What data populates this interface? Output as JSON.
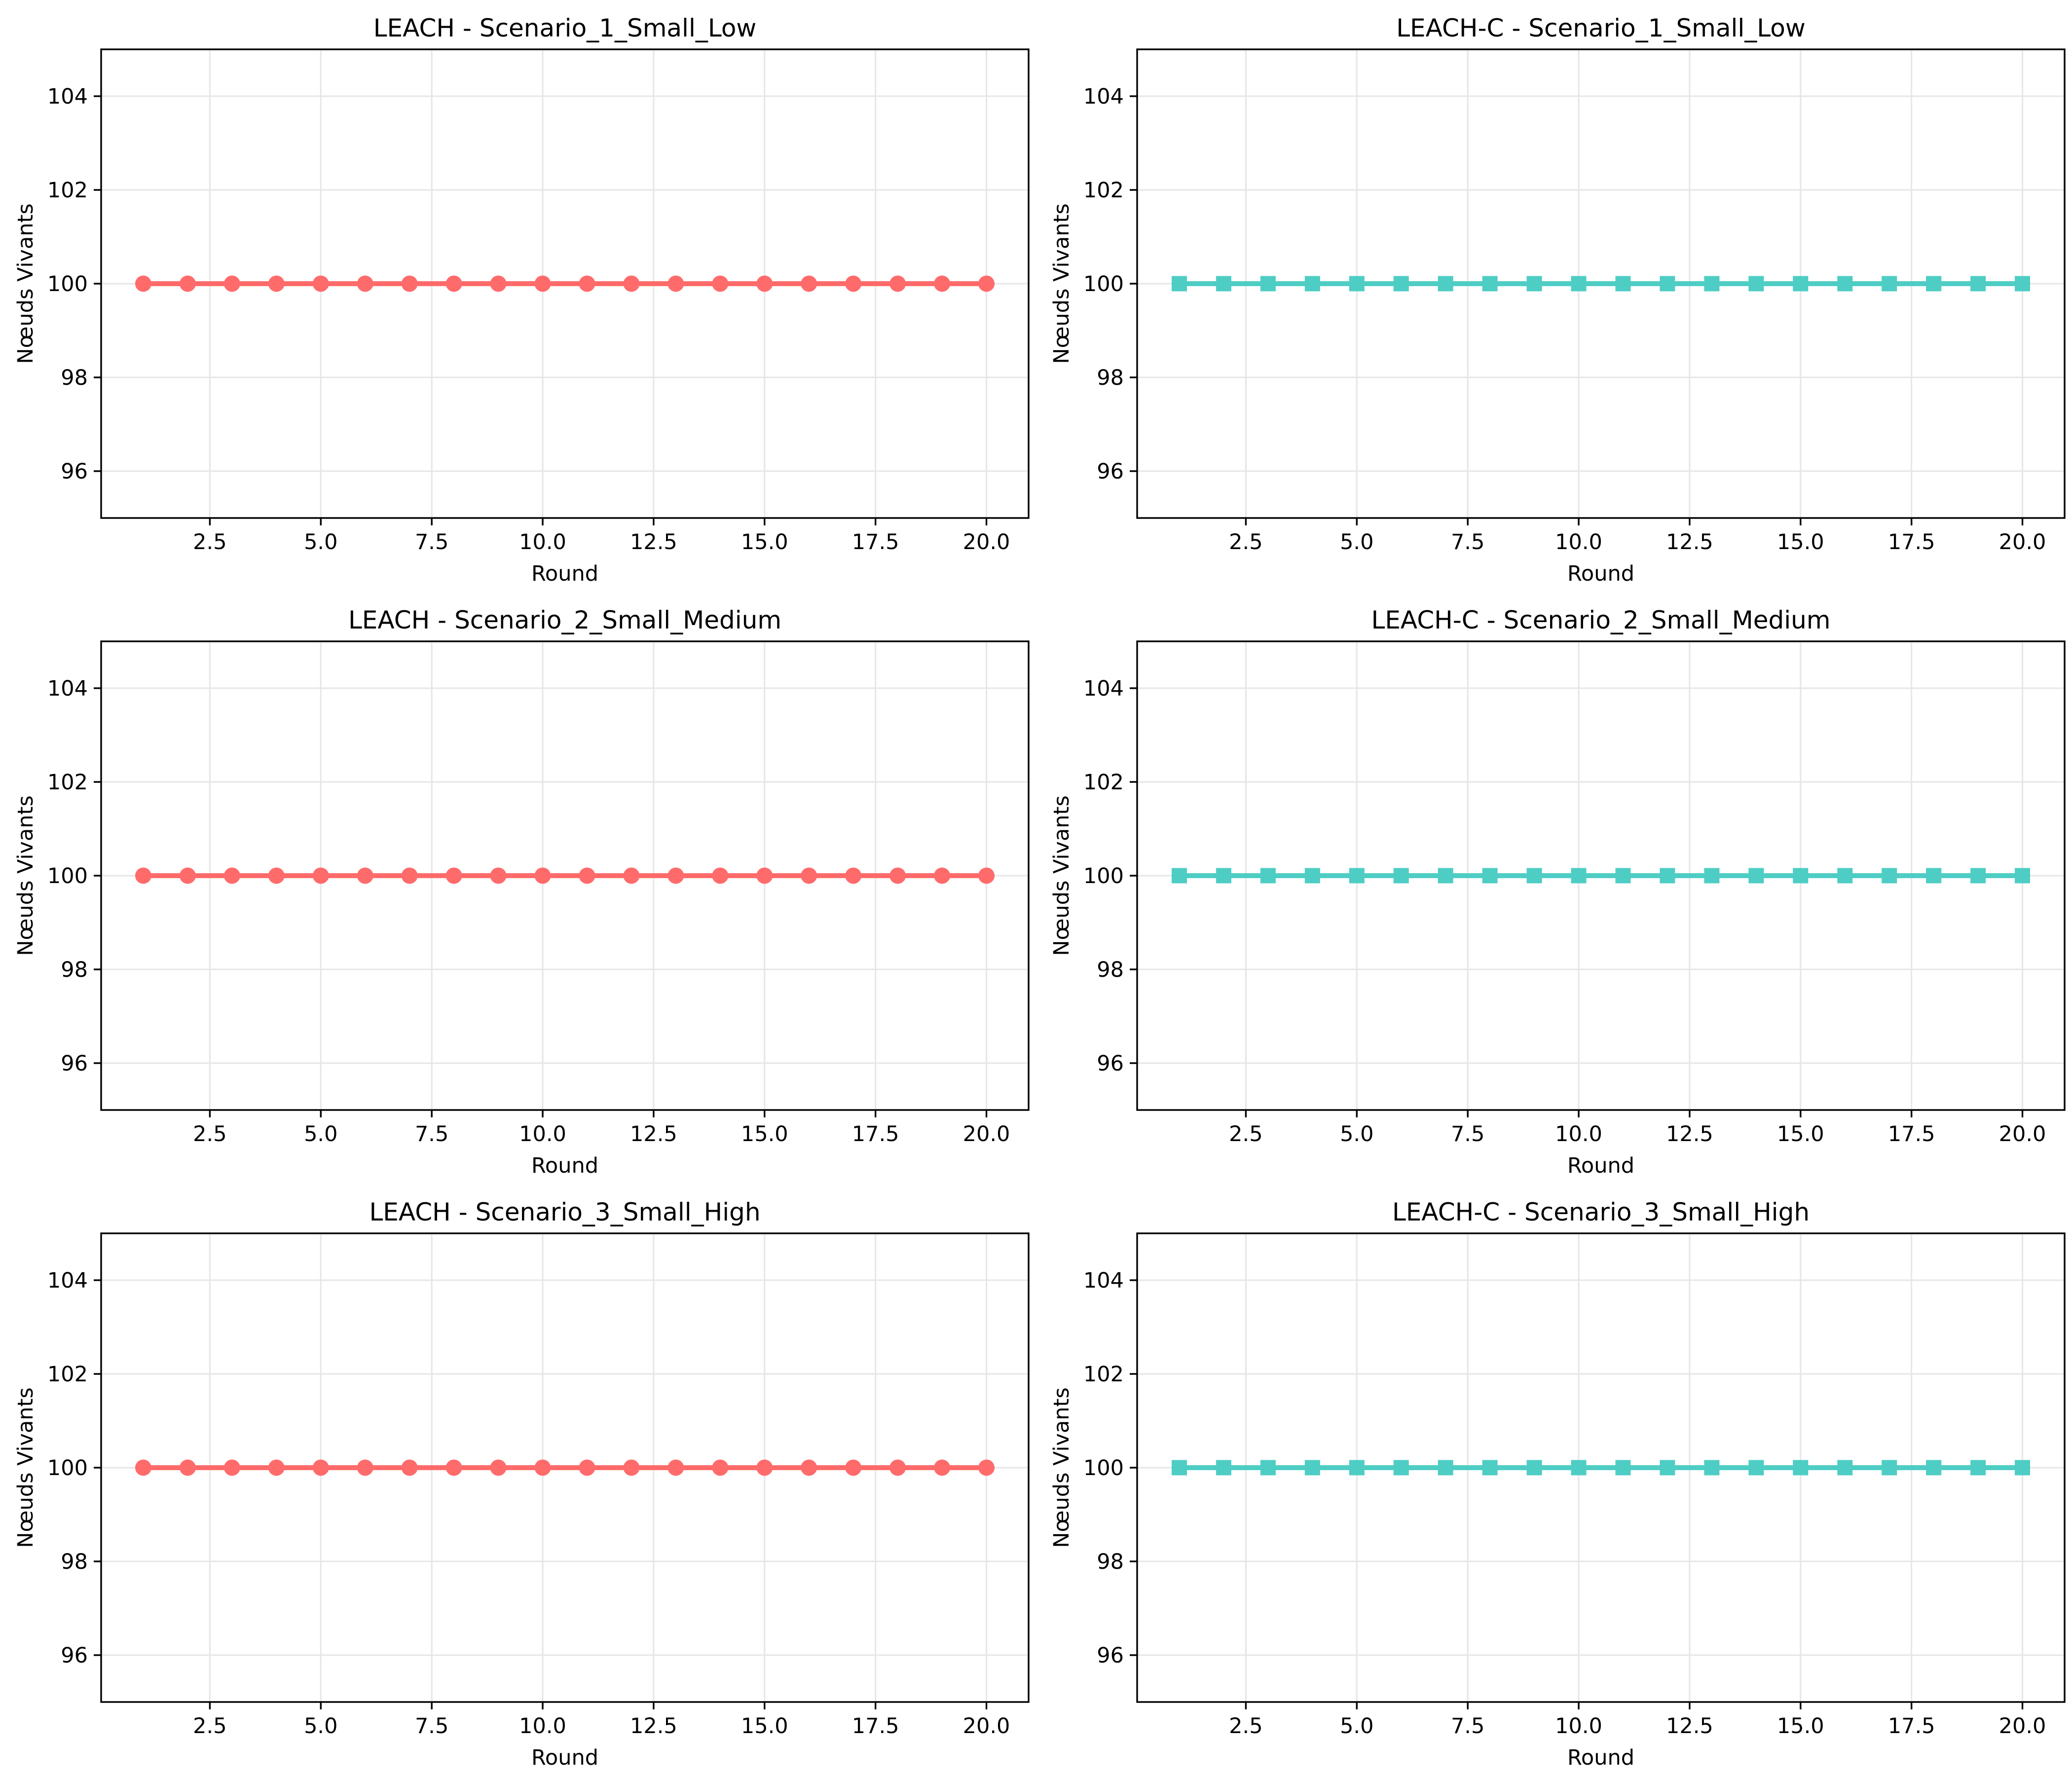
{
  "figure": {
    "background": "#ffffff",
    "columns": 2,
    "rows": 3
  },
  "chart_data": [
    {
      "type": "line",
      "title": "LEACH - Scenario_1_Small_Low",
      "xlabel": "Round",
      "ylabel": "Nœuds Vivants",
      "xlim": [
        0.05,
        20.95
      ],
      "ylim": [
        95,
        105
      ],
      "grid": true,
      "grid_color": "#e6e6e6",
      "spine_color": "#000000",
      "xticks": {
        "values": [
          2.5,
          5,
          7.5,
          10,
          12.5,
          15,
          17.5,
          20
        ],
        "labels": [
          "2.5",
          "5.0",
          "7.5",
          "10.0",
          "12.5",
          "15.0",
          "17.5",
          "20.0"
        ]
      },
      "yticks": {
        "values": [
          96,
          98,
          100,
          102,
          104
        ],
        "labels": [
          "96",
          "98",
          "100",
          "102",
          "104"
        ]
      },
      "series": [
        {
          "name": "LEACH",
          "color": "#FF6B6B",
          "marker": "circle",
          "x": [
            1,
            2,
            3,
            4,
            5,
            6,
            7,
            8,
            9,
            10,
            11,
            12,
            13,
            14,
            15,
            16,
            17,
            18,
            19,
            20
          ],
          "y": [
            100,
            100,
            100,
            100,
            100,
            100,
            100,
            100,
            100,
            100,
            100,
            100,
            100,
            100,
            100,
            100,
            100,
            100,
            100,
            100
          ]
        }
      ]
    },
    {
      "type": "line",
      "title": "LEACH-C - Scenario_1_Small_Low",
      "xlabel": "Round",
      "ylabel": "Nœuds Vivants",
      "xlim": [
        0.05,
        20.95
      ],
      "ylim": [
        95,
        105
      ],
      "grid": true,
      "grid_color": "#e6e6e6",
      "spine_color": "#000000",
      "xticks": {
        "values": [
          2.5,
          5,
          7.5,
          10,
          12.5,
          15,
          17.5,
          20
        ],
        "labels": [
          "2.5",
          "5.0",
          "7.5",
          "10.0",
          "12.5",
          "15.0",
          "17.5",
          "20.0"
        ]
      },
      "yticks": {
        "values": [
          96,
          98,
          100,
          102,
          104
        ],
        "labels": [
          "96",
          "98",
          "100",
          "102",
          "104"
        ]
      },
      "series": [
        {
          "name": "LEACH-C",
          "color": "#4ECDC4",
          "marker": "square",
          "x": [
            1,
            2,
            3,
            4,
            5,
            6,
            7,
            8,
            9,
            10,
            11,
            12,
            13,
            14,
            15,
            16,
            17,
            18,
            19,
            20
          ],
          "y": [
            100,
            100,
            100,
            100,
            100,
            100,
            100,
            100,
            100,
            100,
            100,
            100,
            100,
            100,
            100,
            100,
            100,
            100,
            100,
            100
          ]
        }
      ]
    },
    {
      "type": "line",
      "title": "LEACH - Scenario_2_Small_Medium",
      "xlabel": "Round",
      "ylabel": "Nœuds Vivants",
      "xlim": [
        0.05,
        20.95
      ],
      "ylim": [
        95,
        105
      ],
      "grid": true,
      "grid_color": "#e6e6e6",
      "spine_color": "#000000",
      "xticks": {
        "values": [
          2.5,
          5,
          7.5,
          10,
          12.5,
          15,
          17.5,
          20
        ],
        "labels": [
          "2.5",
          "5.0",
          "7.5",
          "10.0",
          "12.5",
          "15.0",
          "17.5",
          "20.0"
        ]
      },
      "yticks": {
        "values": [
          96,
          98,
          100,
          102,
          104
        ],
        "labels": [
          "96",
          "98",
          "100",
          "102",
          "104"
        ]
      },
      "series": [
        {
          "name": "LEACH",
          "color": "#FF6B6B",
          "marker": "circle",
          "x": [
            1,
            2,
            3,
            4,
            5,
            6,
            7,
            8,
            9,
            10,
            11,
            12,
            13,
            14,
            15,
            16,
            17,
            18,
            19,
            20
          ],
          "y": [
            100,
            100,
            100,
            100,
            100,
            100,
            100,
            100,
            100,
            100,
            100,
            100,
            100,
            100,
            100,
            100,
            100,
            100,
            100,
            100
          ]
        }
      ]
    },
    {
      "type": "line",
      "title": "LEACH-C - Scenario_2_Small_Medium",
      "xlabel": "Round",
      "ylabel": "Nœuds Vivants",
      "xlim": [
        0.05,
        20.95
      ],
      "ylim": [
        95,
        105
      ],
      "grid": true,
      "grid_color": "#e6e6e6",
      "spine_color": "#000000",
      "xticks": {
        "values": [
          2.5,
          5,
          7.5,
          10,
          12.5,
          15,
          17.5,
          20
        ],
        "labels": [
          "2.5",
          "5.0",
          "7.5",
          "10.0",
          "12.5",
          "15.0",
          "17.5",
          "20.0"
        ]
      },
      "yticks": {
        "values": [
          96,
          98,
          100,
          102,
          104
        ],
        "labels": [
          "96",
          "98",
          "100",
          "102",
          "104"
        ]
      },
      "series": [
        {
          "name": "LEACH-C",
          "color": "#4ECDC4",
          "marker": "square",
          "x": [
            1,
            2,
            3,
            4,
            5,
            6,
            7,
            8,
            9,
            10,
            11,
            12,
            13,
            14,
            15,
            16,
            17,
            18,
            19,
            20
          ],
          "y": [
            100,
            100,
            100,
            100,
            100,
            100,
            100,
            100,
            100,
            100,
            100,
            100,
            100,
            100,
            100,
            100,
            100,
            100,
            100,
            100
          ]
        }
      ]
    },
    {
      "type": "line",
      "title": "LEACH - Scenario_3_Small_High",
      "xlabel": "Round",
      "ylabel": "Nœuds Vivants",
      "xlim": [
        0.05,
        20.95
      ],
      "ylim": [
        95,
        105
      ],
      "grid": true,
      "grid_color": "#e6e6e6",
      "spine_color": "#000000",
      "xticks": {
        "values": [
          2.5,
          5,
          7.5,
          10,
          12.5,
          15,
          17.5,
          20
        ],
        "labels": [
          "2.5",
          "5.0",
          "7.5",
          "10.0",
          "12.5",
          "15.0",
          "17.5",
          "20.0"
        ]
      },
      "yticks": {
        "values": [
          96,
          98,
          100,
          102,
          104
        ],
        "labels": [
          "96",
          "98",
          "100",
          "102",
          "104"
        ]
      },
      "series": [
        {
          "name": "LEACH",
          "color": "#FF6B6B",
          "marker": "circle",
          "x": [
            1,
            2,
            3,
            4,
            5,
            6,
            7,
            8,
            9,
            10,
            11,
            12,
            13,
            14,
            15,
            16,
            17,
            18,
            19,
            20
          ],
          "y": [
            100,
            100,
            100,
            100,
            100,
            100,
            100,
            100,
            100,
            100,
            100,
            100,
            100,
            100,
            100,
            100,
            100,
            100,
            100,
            100
          ]
        }
      ]
    },
    {
      "type": "line",
      "title": "LEACH-C - Scenario_3_Small_High",
      "xlabel": "Round",
      "ylabel": "Nœuds Vivants",
      "xlim": [
        0.05,
        20.95
      ],
      "ylim": [
        95,
        105
      ],
      "grid": true,
      "grid_color": "#e6e6e6",
      "spine_color": "#000000",
      "xticks": {
        "values": [
          2.5,
          5,
          7.5,
          10,
          12.5,
          15,
          17.5,
          20
        ],
        "labels": [
          "2.5",
          "5.0",
          "7.5",
          "10.0",
          "12.5",
          "15.0",
          "17.5",
          "20.0"
        ]
      },
      "yticks": {
        "values": [
          96,
          98,
          100,
          102,
          104
        ],
        "labels": [
          "96",
          "98",
          "100",
          "102",
          "104"
        ]
      },
      "series": [
        {
          "name": "LEACH-C",
          "color": "#4ECDC4",
          "marker": "square",
          "x": [
            1,
            2,
            3,
            4,
            5,
            6,
            7,
            8,
            9,
            10,
            11,
            12,
            13,
            14,
            15,
            16,
            17,
            18,
            19,
            20
          ],
          "y": [
            100,
            100,
            100,
            100,
            100,
            100,
            100,
            100,
            100,
            100,
            100,
            100,
            100,
            100,
            100,
            100,
            100,
            100,
            100,
            100
          ]
        }
      ]
    }
  ]
}
